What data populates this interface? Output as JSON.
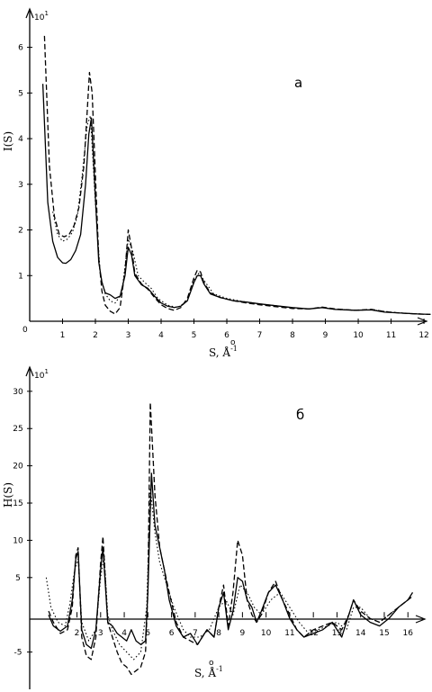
{
  "chart_data": [
    {
      "type": "line",
      "panel_label": "a",
      "multiplier": "10",
      "multiplier_exp": "1",
      "ylabel": "I(S)",
      "xlabel_main": "S, Å",
      "xlabel_sup": "-1",
      "xlim": [
        0,
        12.3
      ],
      "ylim": [
        0,
        6.8
      ],
      "origin_label": "0",
      "xticks": [
        "1",
        "2",
        "3",
        "4",
        "5",
        "6",
        "7",
        "8",
        "9",
        "10",
        "11",
        "12"
      ],
      "xtick_values": [
        1,
        2,
        3,
        4,
        5,
        6,
        7,
        8,
        9,
        10,
        11,
        12
      ],
      "yticks": [
        "1",
        "2",
        "3",
        "4",
        "5",
        "6"
      ],
      "ytick_values": [
        1,
        2,
        3,
        4,
        5,
        6
      ],
      "series": [
        {
          "style": "solid",
          "x": [
            0.4,
            0.55,
            0.7,
            0.85,
            1.0,
            1.1,
            1.25,
            1.4,
            1.55,
            1.7,
            1.8,
            1.88,
            2.0,
            2.1,
            2.2,
            2.3,
            2.45,
            2.6,
            2.75,
            2.9,
            3.0,
            3.1,
            3.2,
            3.4,
            3.6,
            3.8,
            4.0,
            4.2,
            4.4,
            4.6,
            4.8,
            5.0,
            5.1,
            5.2,
            5.3,
            5.5,
            5.8,
            6.2,
            6.6,
            7.0,
            7.5,
            8.0,
            8.5,
            8.9,
            9.3,
            9.9,
            10.4,
            10.8,
            11.3,
            11.8,
            12.2
          ],
          "y": [
            5.2,
            2.6,
            1.75,
            1.4,
            1.28,
            1.27,
            1.35,
            1.55,
            1.9,
            3.0,
            4.1,
            4.45,
            2.7,
            1.3,
            0.85,
            0.62,
            0.58,
            0.5,
            0.55,
            1.0,
            1.62,
            1.45,
            1.0,
            0.8,
            0.72,
            0.55,
            0.4,
            0.33,
            0.3,
            0.33,
            0.45,
            0.85,
            1.0,
            1.0,
            0.82,
            0.6,
            0.52,
            0.45,
            0.42,
            0.38,
            0.34,
            0.3,
            0.27,
            0.3,
            0.26,
            0.24,
            0.25,
            0.2,
            0.18,
            0.16,
            0.15
          ]
        },
        {
          "style": "dashed",
          "x": [
            0.45,
            0.6,
            0.75,
            0.9,
            1.05,
            1.2,
            1.35,
            1.5,
            1.65,
            1.75,
            1.82,
            1.9,
            2.0,
            2.1,
            2.2,
            2.3,
            2.45,
            2.6,
            2.75,
            2.9,
            3.0,
            3.1,
            3.2,
            3.4,
            3.6,
            3.8,
            4.0,
            4.2,
            4.4,
            4.6,
            4.8,
            5.0,
            5.1,
            5.2,
            5.3,
            5.5,
            5.8,
            6.2,
            6.6,
            7.0,
            7.5,
            8.0,
            8.5,
            8.9,
            9.3,
            9.9,
            10.4,
            10.8,
            11.3,
            11.8,
            12.2
          ],
          "y": [
            6.25,
            3.4,
            2.3,
            1.9,
            1.85,
            1.9,
            2.1,
            2.5,
            3.4,
            4.6,
            5.45,
            5.0,
            3.2,
            1.4,
            0.65,
            0.35,
            0.22,
            0.16,
            0.3,
            1.1,
            2.0,
            1.6,
            1.05,
            0.82,
            0.7,
            0.52,
            0.36,
            0.28,
            0.24,
            0.3,
            0.5,
            0.95,
            1.12,
            1.08,
            0.85,
            0.62,
            0.52,
            0.45,
            0.4,
            0.36,
            0.32,
            0.28,
            0.27,
            0.31,
            0.27,
            0.24,
            0.26,
            0.21,
            0.18,
            0.16,
            0.15
          ]
        },
        {
          "style": "dotted",
          "x": [
            0.7,
            0.85,
            1.0,
            1.15,
            1.3,
            1.45,
            1.6,
            1.75,
            1.85,
            2.0,
            2.15,
            2.3,
            2.45,
            2.6,
            2.8,
            3.0,
            3.15,
            3.3,
            3.5,
            3.7,
            3.9,
            4.2,
            4.5,
            4.8,
            5.0,
            5.15,
            5.3,
            5.6,
            6.0,
            6.5,
            7.0,
            7.5,
            8.0,
            8.5,
            8.9,
            9.3,
            9.9,
            10.4,
            11.0,
            11.6,
            12.2
          ],
          "y": [
            2.4,
            1.9,
            1.75,
            1.8,
            1.95,
            2.3,
            3.2,
            4.3,
            4.5,
            2.6,
            1.0,
            0.6,
            0.45,
            0.4,
            0.6,
            1.8,
            1.5,
            1.0,
            0.85,
            0.72,
            0.5,
            0.35,
            0.3,
            0.45,
            0.9,
            1.05,
            0.9,
            0.6,
            0.5,
            0.43,
            0.38,
            0.34,
            0.29,
            0.27,
            0.3,
            0.26,
            0.24,
            0.25,
            0.2,
            0.17,
            0.15
          ]
        }
      ]
    },
    {
      "type": "line",
      "panel_label": "б",
      "multiplier": "10",
      "multiplier_exp": "1",
      "ylabel": "H(S)",
      "xlabel_main": "S, Å",
      "xlabel_sup": "-1",
      "xlim": [
        0,
        16.6
      ],
      "ylim": [
        -10,
        33
      ],
      "xticks": [
        "2",
        "3",
        "4",
        "5",
        "6",
        "7",
        "8",
        "9",
        "10",
        "11",
        "12",
        "13",
        "14",
        "15",
        "16"
      ],
      "xtick_values": [
        2,
        3,
        4,
        5,
        6,
        7,
        8,
        9,
        10,
        11,
        12,
        13,
        14,
        15,
        16
      ],
      "yticks": [
        "-5",
        "5",
        "10",
        "15",
        "20",
        "25",
        "30"
      ],
      "ytick_values": [
        -5,
        5,
        10,
        15,
        20,
        25,
        30
      ],
      "series": [
        {
          "style": "solid",
          "x": [
            0.8,
            1.0,
            1.3,
            1.6,
            1.8,
            1.95,
            2.05,
            2.2,
            2.4,
            2.6,
            2.8,
            3.0,
            3.1,
            3.3,
            3.5,
            3.7,
            3.9,
            4.1,
            4.3,
            4.5,
            4.7,
            4.9,
            5.0,
            5.15,
            5.3,
            5.5,
            5.7,
            5.9,
            6.2,
            6.5,
            6.8,
            7.1,
            7.3,
            7.5,
            7.8,
            8.0,
            8.2,
            8.4,
            8.6,
            8.8,
            9.0,
            9.2,
            9.4,
            9.6,
            9.8,
            10.1,
            10.4,
            10.7,
            11.0,
            11.3,
            11.6,
            12.0,
            12.4,
            12.8,
            13.2,
            13.5,
            13.7,
            14.0,
            14.4,
            14.8,
            15.2,
            15.6,
            16.0,
            16.2
          ],
          "y": [
            0,
            -1.5,
            -2.2,
            -1.5,
            2,
            7.5,
            8.5,
            -2,
            -4,
            -4.5,
            -2,
            6,
            9,
            -1,
            -1.5,
            -2.5,
            -3,
            -3.5,
            -2,
            -3.5,
            -4,
            -3.5,
            3,
            19,
            12,
            9,
            6,
            2,
            -1.5,
            -3,
            -2.5,
            -4,
            -3,
            -2,
            -3,
            1,
            3,
            -2,
            0.5,
            5,
            4.5,
            2,
            1,
            -1,
            0.5,
            3,
            4,
            2,
            -0.5,
            -2,
            -3,
            -2.5,
            -2,
            -1,
            -3,
            0,
            2,
            0,
            -1,
            -1.5,
            -0.5,
            1,
            2,
            3
          ]
        },
        {
          "style": "dashed",
          "x": [
            0.8,
            1.0,
            1.3,
            1.6,
            1.8,
            1.95,
            2.05,
            2.2,
            2.4,
            2.6,
            2.8,
            3.0,
            3.1,
            3.3,
            3.5,
            3.7,
            3.9,
            4.1,
            4.3,
            4.5,
            4.7,
            4.9,
            5.0,
            5.1,
            5.3,
            5.5,
            5.7,
            5.9,
            6.2,
            6.5,
            6.8,
            7.1,
            7.3,
            7.5,
            7.8,
            8.0,
            8.2,
            8.4,
            8.6,
            8.8,
            9.0,
            9.2,
            9.4,
            9.6,
            9.8,
            10.1,
            10.4,
            10.7,
            11.0,
            11.3,
            11.6,
            12.0,
            12.4,
            12.8,
            13.2,
            13.5,
            13.7,
            14.0,
            14.4,
            14.8,
            15.2,
            15.6,
            16.0,
            16.2
          ],
          "y": [
            0.5,
            -1,
            -2.5,
            -2,
            1,
            8,
            9,
            -3,
            -5.5,
            -6,
            -3,
            7,
            10.5,
            -1,
            -3,
            -5,
            -6.5,
            -7,
            -8,
            -7.5,
            -7,
            -5,
            3,
            28.5,
            16,
            9,
            6,
            3,
            -1,
            -3,
            -3.5,
            -4,
            -3,
            -2,
            -3,
            1,
            4,
            -1.5,
            3,
            10,
            8,
            2,
            0,
            -1,
            0,
            3,
            4.5,
            2,
            0,
            -2,
            -3,
            -2,
            -1.5,
            -1,
            -2,
            0,
            2,
            0.5,
            -0.5,
            -1,
            0,
            1,
            2,
            2.5
          ]
        },
        {
          "style": "dotted",
          "x": [
            0.7,
            0.9,
            1.2,
            1.5,
            1.7,
            1.9,
            2.05,
            2.2,
            2.5,
            2.8,
            3.0,
            3.15,
            3.3,
            3.5,
            3.8,
            4.1,
            4.4,
            4.7,
            4.95,
            5.1,
            5.3,
            5.5,
            5.8,
            6.1,
            6.5,
            6.8,
            7.2,
            7.6,
            8.0,
            8.3,
            8.6,
            8.9,
            9.2,
            9.5,
            9.8,
            10.2,
            10.6,
            11.0,
            11.4,
            11.8,
            12.2,
            12.6,
            13.0,
            13.4,
            13.7,
            14.0,
            14.4,
            14.8,
            15.2,
            15.6,
            16.0,
            16.2
          ],
          "y": [
            5,
            1,
            -1,
            -1.5,
            1.5,
            6,
            7.5,
            -1,
            -3.5,
            -2,
            5,
            8,
            0,
            -2,
            -4,
            -5,
            -6,
            -5,
            1,
            17,
            11,
            7,
            4,
            1,
            -2,
            -3,
            -3,
            -2,
            1,
            2,
            0,
            4,
            3,
            1,
            0,
            2,
            3,
            1,
            -1,
            -2.5,
            -2,
            -1.5,
            -1,
            -2,
            1,
            1,
            -0.5,
            -1,
            0,
            1,
            2,
            2.5
          ]
        }
      ]
    }
  ]
}
